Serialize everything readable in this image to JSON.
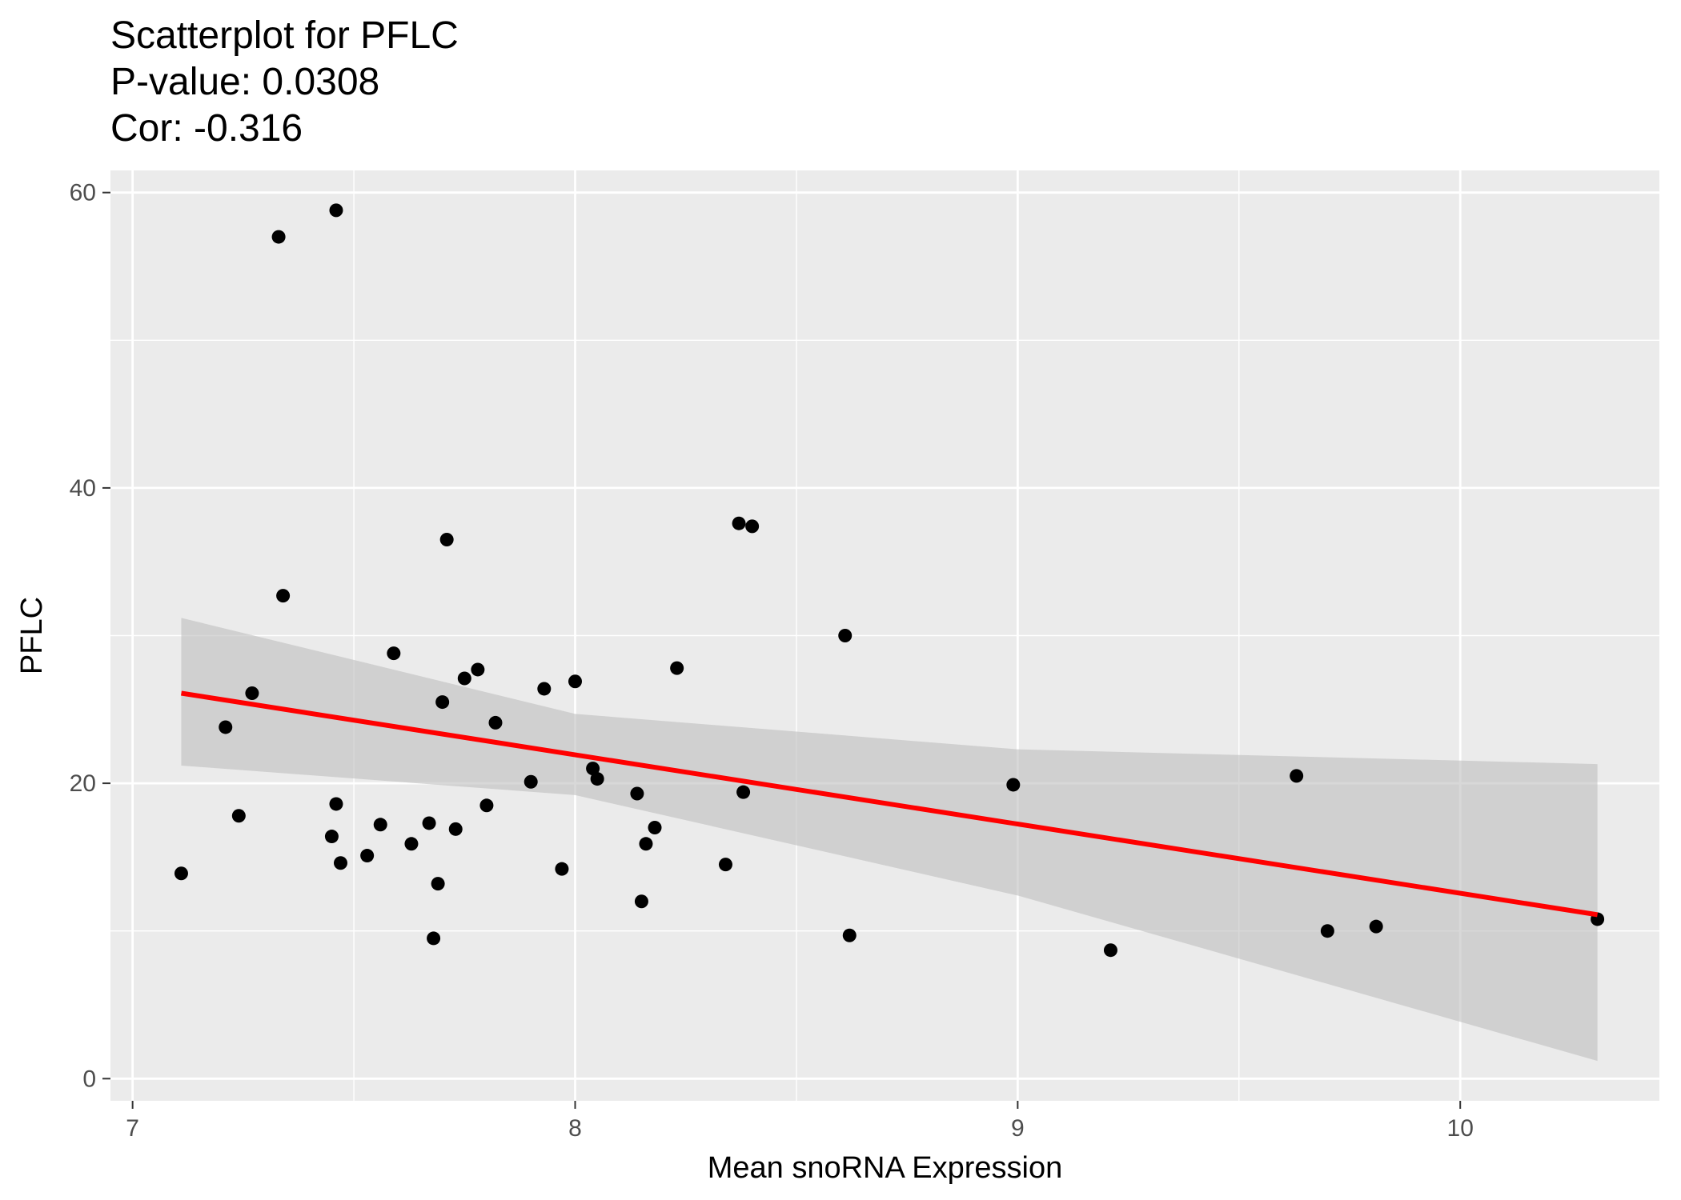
{
  "chart_data": {
    "type": "scatter",
    "title": "Scatterplot for PFLC",
    "subtitle_lines": [
      "P-value: 0.0308",
      "Cor: -0.316"
    ],
    "xlabel": "Mean snoRNA Expression",
    "ylabel": "PFLC",
    "xlim": [
      6.95,
      10.45
    ],
    "ylim": [
      -1.5,
      61.5
    ],
    "x_ticks": [
      7,
      8,
      9,
      10
    ],
    "x_tick_labels": [
      "7",
      "8",
      "9",
      "10"
    ],
    "y_ticks": [
      0,
      20,
      40,
      60
    ],
    "y_tick_labels": [
      "0",
      "20",
      "40",
      "60"
    ],
    "grid": true,
    "legend": "none",
    "colors": {
      "panel_background": "#ebebeb",
      "grid": "#ffffff",
      "points": "#000000",
      "fit_line": "#ff0000",
      "confidence_band": "#bebebe"
    },
    "series": [
      {
        "type": "scatter",
        "x": [
          7.11,
          7.21,
          7.24,
          7.27,
          7.33,
          7.34,
          7.45,
          7.46,
          7.46,
          7.47,
          7.53,
          7.56,
          7.59,
          7.63,
          7.67,
          7.68,
          7.69,
          7.7,
          7.71,
          7.73,
          7.75,
          7.78,
          7.8,
          7.82,
          7.9,
          7.93,
          7.97,
          8.0,
          8.04,
          8.05,
          8.14,
          8.15,
          8.16,
          8.18,
          8.23,
          8.34,
          8.37,
          8.38,
          8.4,
          8.61,
          8.62,
          8.99,
          9.21,
          9.63,
          9.7,
          9.81,
          10.31
        ],
        "y": [
          13.9,
          23.8,
          17.8,
          26.1,
          57.0,
          32.7,
          16.4,
          58.8,
          18.6,
          14.6,
          15.1,
          17.2,
          28.8,
          15.9,
          17.3,
          9.5,
          13.2,
          25.5,
          36.5,
          16.9,
          27.1,
          27.7,
          18.5,
          24.1,
          20.1,
          26.4,
          14.2,
          26.9,
          21.0,
          20.3,
          19.3,
          12.0,
          15.9,
          17.0,
          27.8,
          14.5,
          37.6,
          19.4,
          37.4,
          30.0,
          9.7,
          19.9,
          8.7,
          20.5,
          10.0,
          10.3,
          10.8
        ]
      },
      {
        "type": "line",
        "name": "linear fit",
        "x": [
          7.11,
          10.31
        ],
        "y": [
          26.1,
          11.1
        ]
      },
      {
        "type": "band",
        "name": "95% confidence band",
        "x": [
          7.11,
          8.0,
          9.0,
          10.31
        ],
        "lower": [
          21.2,
          19.2,
          12.4,
          1.2
        ],
        "upper": [
          31.2,
          24.7,
          22.3,
          21.3
        ]
      }
    ]
  }
}
